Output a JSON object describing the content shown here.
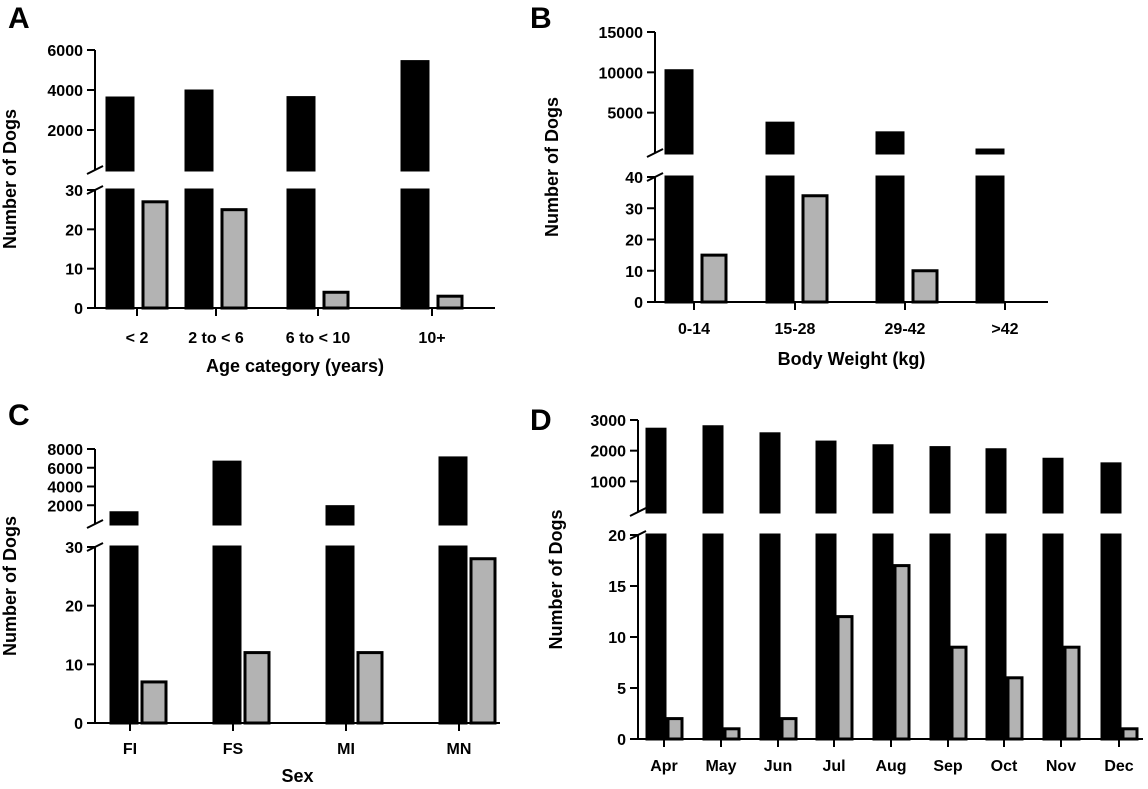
{
  "chart_data": [
    {
      "panel": "A",
      "type": "bar",
      "xlabel": "Age category (years)",
      "ylabel": "Number of Dogs",
      "categories": [
        "< 2",
        "2 to < 6",
        "6 to < 10",
        "10+"
      ],
      "series": [
        {
          "color": "#000000",
          "values": [
            3600,
            3950,
            3620,
            5420
          ]
        },
        {
          "color": "#b3b3b3",
          "values": [
            27,
            25,
            4,
            3
          ]
        }
      ],
      "y_break": true,
      "lower_ylim": [
        0,
        30
      ],
      "lower_ticks": [
        0,
        10,
        20,
        30
      ],
      "upper_ylim": [
        0,
        6000
      ],
      "upper_ticks": [
        2000,
        4000,
        6000
      ],
      "grid": false
    },
    {
      "panel": "B",
      "type": "bar",
      "xlabel": "Body Weight (kg)",
      "ylabel": "Number of Dogs",
      "categories": [
        "0-14",
        "15-28",
        "29-42",
        ">42"
      ],
      "series": [
        {
          "color": "#000000",
          "values": [
            10200,
            3700,
            2500,
            200
          ]
        },
        {
          "color": "#b3b3b3",
          "values": [
            15,
            34,
            10,
            0
          ]
        }
      ],
      "y_break": true,
      "lower_ylim": [
        0,
        40
      ],
      "lower_ticks": [
        0,
        10,
        20,
        30,
        40
      ],
      "upper_ylim": [
        0,
        15000
      ],
      "upper_ticks": [
        5000,
        10000,
        15000
      ],
      "grid": false
    },
    {
      "panel": "C",
      "type": "bar",
      "xlabel": "Sex",
      "ylabel": "Number of Dogs",
      "categories": [
        "FI",
        "FS",
        "MI",
        "MN"
      ],
      "series": [
        {
          "color": "#000000",
          "values": [
            1200,
            6600,
            1850,
            7050
          ]
        },
        {
          "color": "#b3b3b3",
          "values": [
            7,
            12,
            12,
            28
          ]
        }
      ],
      "y_break": true,
      "lower_ylim": [
        0,
        30
      ],
      "lower_ticks": [
        0,
        10,
        20,
        30
      ],
      "upper_ylim": [
        0,
        8000
      ],
      "upper_ticks": [
        2000,
        4000,
        6000,
        8000
      ],
      "grid": false
    },
    {
      "panel": "D",
      "type": "bar",
      "xlabel": "",
      "ylabel": "Number of Dogs",
      "categories": [
        "Apr",
        "May",
        "Jun",
        "Jul",
        "Aug",
        "Sep",
        "Oct",
        "Nov",
        "Dec"
      ],
      "series": [
        {
          "color": "#000000",
          "values": [
            2700,
            2780,
            2550,
            2280,
            2160,
            2100,
            2030,
            1720,
            1570
          ]
        },
        {
          "color": "#b3b3b3",
          "values": [
            2,
            1,
            2,
            12,
            17,
            9,
            6,
            9,
            1
          ]
        }
      ],
      "y_break": true,
      "lower_ylim": [
        0,
        20
      ],
      "lower_ticks": [
        0,
        5,
        10,
        15,
        20
      ],
      "upper_ylim": [
        0,
        3000
      ],
      "upper_ticks": [
        1000,
        2000,
        3000
      ],
      "grid": false
    }
  ]
}
